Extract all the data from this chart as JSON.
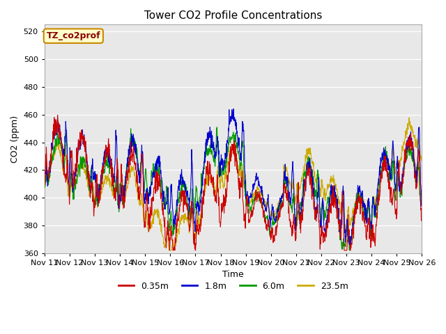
{
  "title": "Tower CO2 Profile Concentrations",
  "ylabel": "CO2 (ppm)",
  "xlabel": "Time",
  "ylim": [
    360,
    525
  ],
  "yticks": [
    360,
    380,
    400,
    420,
    440,
    460,
    480,
    500,
    520
  ],
  "legend_labels": [
    "0.35m",
    "1.8m",
    "6.0m",
    "23.5m"
  ],
  "legend_colors": [
    "#cc0000",
    "#0000cc",
    "#009900",
    "#ccaa00"
  ],
  "annotation_text": "TZ_co2prof",
  "annotation_color": "#880000",
  "annotation_bg": "#ffffcc",
  "annotation_edge": "#cc8800",
  "background_color": "#e8e8e8",
  "n_days": 15,
  "points_per_day": 96,
  "xticklabels": [
    "Nov 11",
    "Nov 12",
    "Nov 13",
    "Nov 14",
    "Nov 15",
    "Nov 16",
    "Nov 17",
    "Nov 18",
    "Nov 19",
    "Nov 20",
    "Nov 21",
    "Nov 22",
    "Nov 23",
    "Nov 24",
    "Nov 25",
    "Nov 26"
  ],
  "seed": 0
}
